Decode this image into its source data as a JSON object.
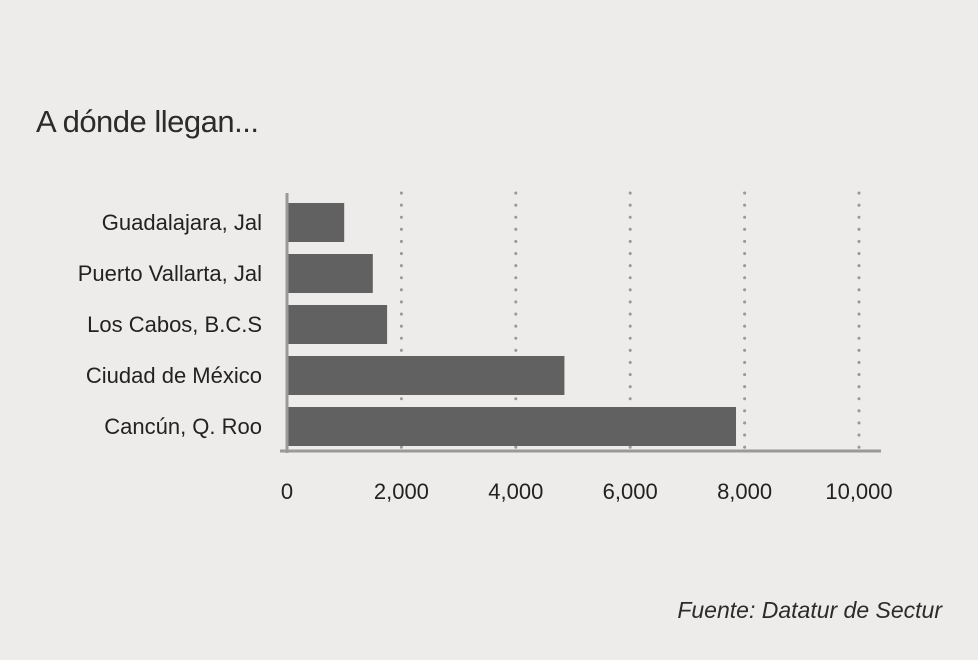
{
  "chart_data": {
    "type": "bar",
    "orientation": "horizontal",
    "title": "A dónde llegan...",
    "categories": [
      "Guadalajara, Jal",
      "Puerto Vallarta, Jal",
      "Los Cabos, B.C.S",
      "Ciudad de México",
      "Cancún, Q. Roo"
    ],
    "values": [
      1000,
      1500,
      1750,
      4850,
      7850
    ],
    "xlim": [
      0,
      10000
    ],
    "xticks": [
      0,
      2000,
      4000,
      6000,
      8000,
      10000
    ],
    "xtick_labels": [
      "0",
      "2,000",
      "4,000",
      "6,000",
      "8,000",
      "10,000"
    ],
    "grid": "vertical-dotted",
    "bar_color": "#616161",
    "axis_color": "#999999",
    "grid_color": "#999999"
  },
  "source": "Fuente: Datatur de Sectur"
}
